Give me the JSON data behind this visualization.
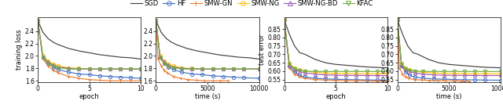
{
  "legend_entries": [
    "SGD",
    "HF",
    "SMW-GN",
    "SMW-NG",
    "SMW-NG-BD",
    "KFAC"
  ],
  "colors": {
    "SGD": "#404040",
    "HF": "#4472c4",
    "SMW-GN": "#ed7d31",
    "SMW-NG": "#ffc000",
    "SMW-NG-BD": "#9b59b6",
    "KFAC": "#70ad47"
  },
  "markers": {
    "SGD": "None",
    "HF": "o",
    "SMW-GN": "+",
    "SMW-NG": "o",
    "SMW-NG-BD": "^",
    "KFAC": "v"
  },
  "plot1": {
    "xlabel": "epoch",
    "ylabel": "training loss",
    "xlim": [
      0,
      10
    ],
    "ylim": [
      1.58,
      2.62
    ],
    "yticks": [
      1.6,
      1.8,
      2.0,
      2.2,
      2.4
    ],
    "xticks": [
      0,
      5,
      10
    ],
    "curves": {
      "SGD": {
        "x": [
          0,
          0.5,
          1,
          1.5,
          2,
          3,
          4,
          5,
          6,
          7,
          8,
          9,
          10
        ],
        "y": [
          2.57,
          2.38,
          2.28,
          2.22,
          2.18,
          2.12,
          2.08,
          2.05,
          2.02,
          2.0,
          1.98,
          1.97,
          1.95
        ]
      },
      "HF": {
        "x": [
          0,
          0.5,
          1,
          1.5,
          2,
          3,
          4,
          5,
          6,
          7,
          8,
          9,
          10
        ],
        "y": [
          2.57,
          1.98,
          1.88,
          1.82,
          1.78,
          1.74,
          1.71,
          1.7,
          1.68,
          1.67,
          1.66,
          1.65,
          1.64
        ]
      },
      "SMW-GN": {
        "x": [
          0,
          0.5,
          1,
          1.5,
          2,
          3,
          4,
          5,
          6,
          7,
          8,
          9,
          10
        ],
        "y": [
          2.57,
          1.95,
          1.84,
          1.77,
          1.73,
          1.67,
          1.64,
          1.62,
          1.61,
          1.6,
          1.6,
          1.6,
          1.6
        ]
      },
      "SMW-NG": {
        "x": [
          0,
          0.5,
          1,
          1.5,
          2,
          3,
          4,
          5,
          6,
          7,
          8,
          9,
          10
        ],
        "y": [
          2.57,
          2.0,
          1.92,
          1.87,
          1.84,
          1.81,
          1.8,
          1.79,
          1.79,
          1.79,
          1.79,
          1.79,
          1.79
        ]
      },
      "SMW-NG-BD": {
        "x": [
          0,
          0.5,
          1,
          1.5,
          2,
          3,
          4,
          5,
          6,
          7,
          8,
          9,
          10
        ],
        "y": [
          2.57,
          1.98,
          1.9,
          1.85,
          1.82,
          1.8,
          1.79,
          1.79,
          1.79,
          1.79,
          1.79,
          1.79,
          1.79
        ]
      },
      "KFAC": {
        "x": [
          0,
          0.5,
          1,
          1.5,
          2,
          3,
          4,
          5,
          6,
          7,
          8,
          9,
          10
        ],
        "y": [
          2.57,
          1.97,
          1.88,
          1.83,
          1.81,
          1.79,
          1.79,
          1.79,
          1.79,
          1.79,
          1.79,
          1.79,
          1.79
        ]
      }
    }
  },
  "plot2": {
    "xlabel": "time (s)",
    "ylabel": "",
    "xlim": [
      0,
      10000
    ],
    "ylim": [
      1.58,
      2.62
    ],
    "yticks": [
      1.6,
      1.8,
      2.0,
      2.2,
      2.4
    ],
    "xticks": [
      0,
      5000,
      10000
    ],
    "curves": {
      "SGD": {
        "x": [
          0,
          500,
          1000,
          1500,
          2000,
          3000,
          4000,
          5000,
          6000,
          7000,
          8000,
          9000,
          10000
        ],
        "y": [
          2.57,
          2.38,
          2.28,
          2.22,
          2.18,
          2.12,
          2.08,
          2.05,
          2.02,
          2.0,
          1.98,
          1.97,
          1.95
        ]
      },
      "HF": {
        "x": [
          0,
          400,
          800,
          1200,
          1700,
          2500,
          3500,
          4500,
          5500,
          6500,
          7500,
          8500,
          10000
        ],
        "y": [
          2.57,
          1.98,
          1.88,
          1.82,
          1.78,
          1.74,
          1.71,
          1.7,
          1.68,
          1.67,
          1.66,
          1.65,
          1.64
        ]
      },
      "SMW-GN": {
        "x": [
          0,
          200,
          500,
          800,
          1100,
          1700,
          2400,
          3100,
          3900,
          4700,
          5500,
          6200,
          7000
        ],
        "y": [
          2.57,
          1.95,
          1.84,
          1.77,
          1.73,
          1.67,
          1.64,
          1.62,
          1.61,
          1.6,
          1.6,
          1.6,
          1.6
        ]
      },
      "SMW-NG": {
        "x": [
          0,
          400,
          800,
          1200,
          1700,
          2500,
          3500,
          4500,
          5500,
          6500,
          7500,
          8500,
          10000
        ],
        "y": [
          2.57,
          2.0,
          1.92,
          1.87,
          1.84,
          1.81,
          1.8,
          1.79,
          1.79,
          1.79,
          1.79,
          1.79,
          1.79
        ]
      },
      "SMW-NG-BD": {
        "x": [
          0,
          400,
          800,
          1200,
          1700,
          2500,
          3500,
          4500,
          5500,
          6500,
          7500,
          8500,
          10000
        ],
        "y": [
          2.57,
          1.98,
          1.9,
          1.85,
          1.82,
          1.8,
          1.79,
          1.79,
          1.79,
          1.79,
          1.79,
          1.79,
          1.79
        ]
      },
      "KFAC": {
        "x": [
          0,
          400,
          800,
          1200,
          1700,
          2500,
          3500,
          4500,
          5500,
          6500,
          7500,
          8500,
          10000
        ],
        "y": [
          2.57,
          1.97,
          1.88,
          1.83,
          1.81,
          1.79,
          1.79,
          1.79,
          1.79,
          1.79,
          1.79,
          1.79,
          1.79
        ]
      }
    }
  },
  "plot3": {
    "xlabel": "epoch",
    "ylabel": "test error",
    "xlim": [
      0,
      10
    ],
    "ylim": [
      0.535,
      0.92
    ],
    "yticks": [
      0.55,
      0.6,
      0.65,
      0.7,
      0.75,
      0.8,
      0.85
    ],
    "xticks": [
      0,
      5,
      10
    ],
    "curves": {
      "SGD": {
        "x": [
          0,
          0.5,
          1,
          1.5,
          2,
          3,
          4,
          5,
          6,
          7,
          8,
          9,
          10
        ],
        "y": [
          0.905,
          0.82,
          0.75,
          0.71,
          0.7,
          0.67,
          0.65,
          0.64,
          0.635,
          0.63,
          0.625,
          0.622,
          0.62
        ]
      },
      "HF": {
        "x": [
          0,
          0.5,
          1,
          1.5,
          2,
          3,
          4,
          5,
          6,
          7,
          8,
          9,
          10
        ],
        "y": [
          0.905,
          0.63,
          0.595,
          0.575,
          0.565,
          0.558,
          0.554,
          0.552,
          0.55,
          0.549,
          0.548,
          0.547,
          0.546
        ]
      },
      "SMW-GN": {
        "x": [
          0,
          0.5,
          1,
          1.5,
          2,
          3,
          4,
          5,
          6,
          7,
          8,
          9,
          10
        ],
        "y": [
          0.905,
          0.62,
          0.582,
          0.566,
          0.557,
          0.55,
          0.547,
          0.545,
          0.544,
          0.543,
          0.542,
          0.541,
          0.541
        ]
      },
      "SMW-NG": {
        "x": [
          0,
          0.5,
          1,
          1.5,
          2,
          3,
          4,
          5,
          6,
          7,
          8,
          9,
          10
        ],
        "y": [
          0.905,
          0.645,
          0.62,
          0.608,
          0.6,
          0.593,
          0.589,
          0.587,
          0.586,
          0.585,
          0.585,
          0.585,
          0.585
        ]
      },
      "SMW-NG-BD": {
        "x": [
          0,
          0.5,
          1,
          1.5,
          2,
          3,
          4,
          5,
          6,
          7,
          8,
          9,
          10
        ],
        "y": [
          0.905,
          0.638,
          0.61,
          0.597,
          0.59,
          0.582,
          0.578,
          0.576,
          0.575,
          0.575,
          0.574,
          0.574,
          0.574
        ]
      },
      "KFAC": {
        "x": [
          0,
          0.5,
          1,
          1.5,
          2,
          3,
          4,
          5,
          6,
          7,
          8,
          9,
          10
        ],
        "y": [
          0.905,
          0.64,
          0.615,
          0.604,
          0.6,
          0.598,
          0.598,
          0.598,
          0.598,
          0.598,
          0.598,
          0.598,
          0.598
        ]
      }
    }
  },
  "plot4": {
    "xlabel": "time (s)",
    "ylabel": "",
    "xlim": [
      0,
      10000
    ],
    "ylim": [
      0.535,
      0.92
    ],
    "yticks": [
      0.55,
      0.6,
      0.65,
      0.7,
      0.75,
      0.8,
      0.85
    ],
    "xticks": [
      0,
      5000,
      10000
    ],
    "curves": {
      "SGD": {
        "x": [
          0,
          500,
          1000,
          1500,
          2000,
          3000,
          4000,
          5000,
          6000,
          7000,
          8000,
          9000,
          10000
        ],
        "y": [
          0.905,
          0.82,
          0.75,
          0.71,
          0.7,
          0.67,
          0.65,
          0.64,
          0.635,
          0.63,
          0.625,
          0.622,
          0.62
        ]
      },
      "HF": {
        "x": [
          0,
          400,
          800,
          1200,
          1700,
          2500,
          3500,
          4500,
          5500,
          6500,
          7500,
          8500,
          10000
        ],
        "y": [
          0.905,
          0.63,
          0.595,
          0.575,
          0.565,
          0.558,
          0.554,
          0.552,
          0.55,
          0.549,
          0.548,
          0.547,
          0.546
        ]
      },
      "SMW-GN": {
        "x": [
          0,
          200,
          500,
          800,
          1100,
          1700,
          2400,
          3100,
          3900,
          4700,
          5500,
          6200,
          7000
        ],
        "y": [
          0.905,
          0.62,
          0.582,
          0.566,
          0.557,
          0.55,
          0.547,
          0.545,
          0.544,
          0.543,
          0.542,
          0.541,
          0.541
        ]
      },
      "SMW-NG": {
        "x": [
          0,
          400,
          800,
          1200,
          1700,
          2500,
          3500,
          4500,
          5500,
          6500,
          7500,
          8500,
          10000
        ],
        "y": [
          0.905,
          0.645,
          0.62,
          0.608,
          0.6,
          0.593,
          0.589,
          0.587,
          0.586,
          0.585,
          0.585,
          0.585,
          0.585
        ]
      },
      "SMW-NG-BD": {
        "x": [
          0,
          400,
          800,
          1200,
          1700,
          2500,
          3500,
          4500,
          5500,
          6500,
          7500,
          8500,
          10000
        ],
        "y": [
          0.905,
          0.638,
          0.61,
          0.597,
          0.59,
          0.582,
          0.578,
          0.576,
          0.575,
          0.575,
          0.574,
          0.574,
          0.574
        ]
      },
      "KFAC": {
        "x": [
          0,
          400,
          800,
          1200,
          1700,
          2500,
          3500,
          4500,
          5500,
          6500,
          7500,
          8500,
          10000
        ],
        "y": [
          0.905,
          0.64,
          0.615,
          0.604,
          0.6,
          0.598,
          0.598,
          0.598,
          0.598,
          0.598,
          0.598,
          0.598,
          0.598
        ]
      }
    }
  },
  "figsize": [
    6.4,
    1.38
  ],
  "dpi": 100
}
